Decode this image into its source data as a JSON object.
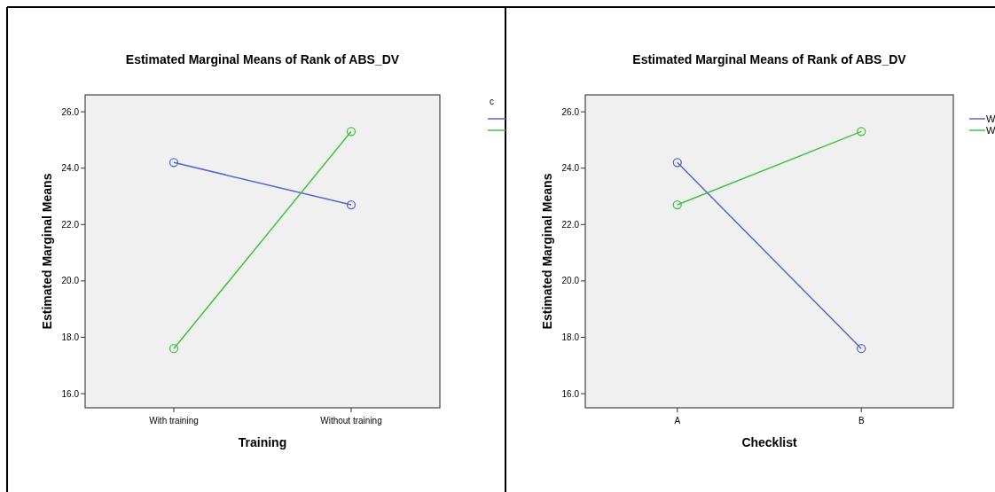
{
  "chart_data": [
    {
      "type": "line",
      "title": "Estimated Marginal Means of Rank of ABS_DV",
      "xlabel": "Training",
      "ylabel": "Estimated Marginal Means",
      "legend_title": "c",
      "categories": [
        "With training",
        "Without training"
      ],
      "series": [
        {
          "color": "#5468c8",
          "values": [
            24.2,
            22.7
          ]
        },
        {
          "color": "#44c044",
          "values": [
            17.6,
            25.3
          ]
        }
      ],
      "ylim": [
        15.5,
        26.6
      ],
      "yticks": [
        {
          "value": 16,
          "label": "16.0"
        },
        {
          "value": 18,
          "label": "18.0"
        },
        {
          "value": 20,
          "label": "20.0"
        },
        {
          "value": 22,
          "label": "22.0"
        },
        {
          "value": 24,
          "label": "24.0"
        },
        {
          "value": 26,
          "label": "26.0"
        }
      ],
      "marker": "circle",
      "legend": "right",
      "grid": false
    },
    {
      "type": "line",
      "title": "Estimated Marginal Means of Rank of ABS_DV",
      "xlabel": "Checklist",
      "ylabel": "Estimated Marginal Means",
      "categories": [
        "A",
        "B"
      ],
      "series": [
        {
          "name": "W",
          "color": "#5468c8",
          "values": [
            24.2,
            17.6
          ]
        },
        {
          "name": "W",
          "color": "#44c044",
          "values": [
            22.7,
            25.3
          ]
        }
      ],
      "ylim": [
        15.5,
        26.6
      ],
      "yticks": [
        {
          "value": 16,
          "label": "16.0"
        },
        {
          "value": 18,
          "label": "18.0"
        },
        {
          "value": 20,
          "label": "20.0"
        },
        {
          "value": 22,
          "label": "22.0"
        },
        {
          "value": 24,
          "label": "24.0"
        },
        {
          "value": 26,
          "label": "26.0"
        }
      ],
      "marker": "circle",
      "legend": "right",
      "grid": false
    }
  ]
}
